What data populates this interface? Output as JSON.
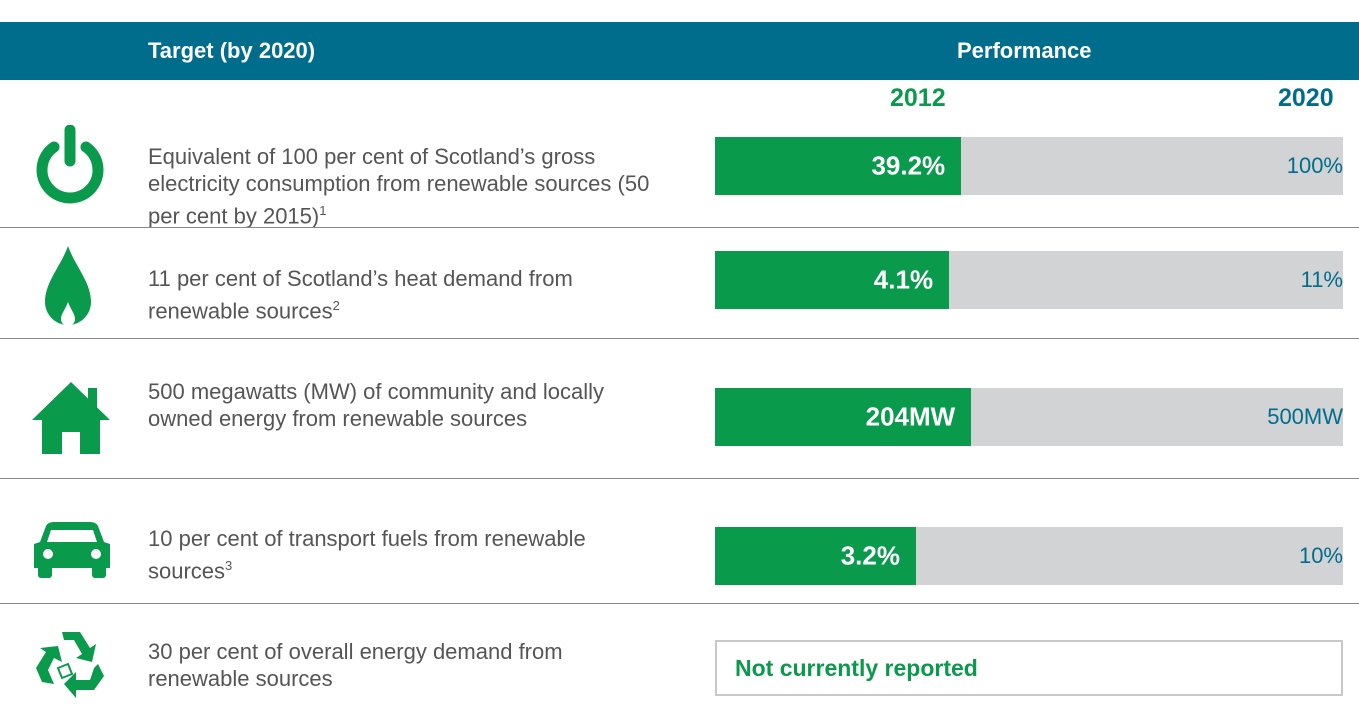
{
  "header": {
    "target": "Target (by 2020)",
    "performance": "Performance",
    "year_now": "2012",
    "year_goal": "2020"
  },
  "rows": [
    {
      "target": "Equivalent of 100 per cent of Scotland’s gross electricity consumption from renewable sources (50 per cent by 2015)",
      "note": "1",
      "current": {
        "value": 39.2,
        "label": "39.2%"
      },
      "goal": {
        "value": 100,
        "label": "100%"
      }
    },
    {
      "target": "11 per cent of Scotland’s heat demand from renewable sources",
      "note": "2",
      "current": {
        "value": 4.1,
        "label": "4.1%"
      },
      "goal": {
        "value": 11,
        "label": "11%"
      }
    },
    {
      "target": "500 megawatts (MW) of community and locally owned energy from renewable sources",
      "current": {
        "value": 204,
        "label": "204MW"
      },
      "goal": {
        "value": 500,
        "label": "500MW"
      }
    },
    {
      "target": "10 per cent of transport fuels from renewable sources",
      "note": "3",
      "current": {
        "value": 3.2,
        "label": "3.2%"
      },
      "goal": {
        "value": 10,
        "label": "10%"
      }
    },
    {
      "target": "30 per cent of overall energy demand from renewable sources",
      "status": "Not currently reported"
    }
  ]
}
